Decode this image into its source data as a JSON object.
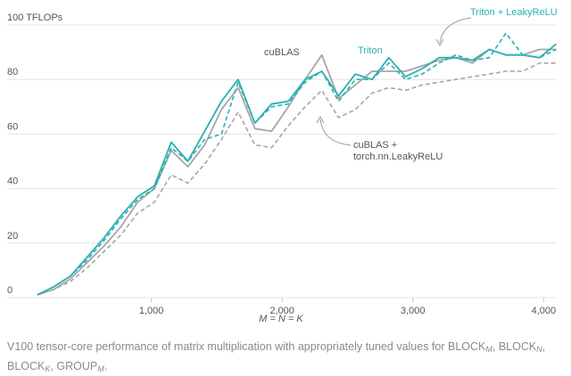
{
  "chart_data": {
    "type": "line",
    "title": "",
    "xlabel": "M = N = K",
    "ylabel": "",
    "y_unit_label": "100 TFLOPs",
    "xlim": [
      0,
      4100
    ],
    "ylim": [
      0,
      100
    ],
    "x_ticks": [
      1000,
      2000,
      3000,
      4000
    ],
    "x_tick_labels": [
      "1,000",
      "2,000",
      "3,000",
      "4,000"
    ],
    "y_ticks": [
      0,
      20,
      40,
      60,
      80,
      100
    ],
    "y_tick_labels": [
      "0",
      "20",
      "40",
      "60",
      "80",
      "100 TFLOPs"
    ],
    "grid": "horizontal",
    "x": [
      128,
      256,
      384,
      512,
      640,
      768,
      896,
      1024,
      1152,
      1280,
      1408,
      1536,
      1664,
      1792,
      1920,
      2048,
      2176,
      2304,
      2432,
      2560,
      2688,
      2816,
      2944,
      3072,
      3200,
      3328,
      3456,
      3584,
      3712,
      3840,
      3968,
      4096
    ],
    "series": [
      {
        "name": "cuBLAS",
        "color": "#a6a6a6",
        "style": "solid",
        "values": [
          1,
          3,
          7,
          13,
          19,
          26,
          35,
          40,
          54,
          48,
          56,
          69,
          77,
          62,
          61,
          70,
          80,
          89,
          73,
          78,
          83,
          83,
          83,
          85,
          87,
          88,
          86,
          91,
          89,
          89,
          91,
          91
        ]
      },
      {
        "name": "Triton",
        "color": "#2ab0b3",
        "style": "solid",
        "values": [
          1,
          4,
          8,
          15,
          22,
          30,
          37,
          41,
          57,
          50,
          61,
          72,
          80,
          64,
          71,
          72,
          80,
          83,
          74,
          82,
          80,
          88,
          81,
          84,
          88,
          88,
          87,
          91,
          89,
          89,
          88,
          93
        ]
      },
      {
        "name": "Triton + LeakyReLU",
        "color": "#2ab0b3",
        "style": "dashed",
        "values": [
          1,
          4,
          8,
          14,
          21,
          29,
          36,
          40,
          55,
          50,
          58,
          60,
          79,
          64,
          70,
          71,
          79,
          83,
          72,
          80,
          80,
          86,
          80,
          82,
          86,
          89,
          87,
          88,
          97,
          89,
          88,
          91
        ]
      },
      {
        "name": "cuBLAS + torch.nn.LeakyReLU",
        "color": "#a6a6a6",
        "style": "dashed",
        "values": [
          1,
          3,
          6,
          11,
          17,
          23,
          31,
          35,
          45,
          42,
          49,
          58,
          68,
          56,
          55,
          63,
          70,
          76,
          66,
          69,
          75,
          77,
          76,
          78,
          79,
          80,
          81,
          82,
          83,
          83,
          86,
          86
        ]
      }
    ],
    "annotations": [
      {
        "text": "cuBLAS",
        "color": "#555555"
      },
      {
        "text": "Triton",
        "color": "#2ab0b3"
      },
      {
        "text": "Triton + LeakyReLU",
        "color": "#2ab0b3"
      },
      {
        "text": "cuBLAS +",
        "color": "#555555"
      },
      {
        "text": "torch.nn.LeakyReLU",
        "color": "#555555"
      }
    ]
  },
  "caption": {
    "part1": "V100 tensor-core performance of matrix multiplication with appropriately tuned values for BLOCK",
    "sub1": "M",
    "sep1": ", BLOCK",
    "sub2": "N",
    "sep2": ", BLOCK",
    "sub3": "K",
    "sep3": ", GROUP",
    "sub4": "M",
    "end": "."
  }
}
